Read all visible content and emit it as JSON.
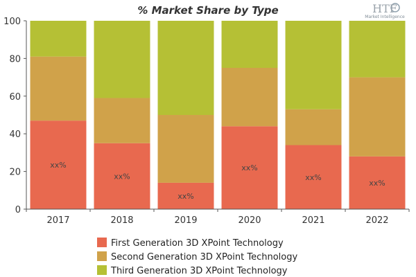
{
  "chart_data": {
    "type": "bar",
    "stacked": true,
    "title": "% Market Share by Type",
    "categories": [
      "2017",
      "2018",
      "2019",
      "2020",
      "2021",
      "2022"
    ],
    "ylim": [
      0,
      100
    ],
    "yticks": [
      "0",
      "20",
      "40",
      "60",
      "80",
      "100"
    ],
    "xlabel": "",
    "ylabel": "",
    "grid": false,
    "legend_position": "bottom",
    "series": [
      {
        "name": "First Generation 3D XPoint Technology",
        "color": "#e8694f",
        "values": [
          47,
          35,
          14,
          44,
          34,
          28
        ],
        "data_labels": [
          "xx%",
          "xx%",
          "xx%",
          "xx%",
          "xx%",
          "xx%"
        ]
      },
      {
        "name": "Second Generation 3D XPoint Technology",
        "color": "#d0a24a",
        "values": [
          34,
          24,
          36,
          31,
          19,
          42
        ]
      },
      {
        "name": "Third Generation 3D XPoint Technology",
        "color": "#b5c035",
        "values": [
          19,
          41,
          50,
          25,
          47,
          30
        ]
      }
    ]
  },
  "logo": {
    "text": "HTF",
    "subtext": "Market Intelligence"
  }
}
